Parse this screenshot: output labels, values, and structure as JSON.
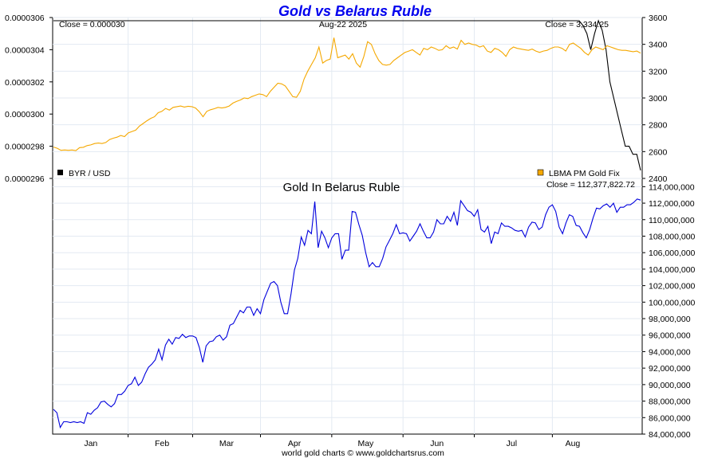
{
  "header": {
    "title": "Gold vs Belarus Ruble",
    "footer": "world gold charts © www.goldchartsrus.com"
  },
  "colors": {
    "title": "#0000ee",
    "gold_line": "#f5a800",
    "byr_line": "#000000",
    "ruble_gold_line": "#0000dd",
    "grid": "#e3eaf2"
  },
  "top_panel": {
    "left_close": "Close = 0.000030",
    "date": "Aug-22  2025",
    "right_close": "Close = 3,334.25",
    "legend_left": "BYR / USD",
    "legend_right": "LBMA PM Gold Fix",
    "left_ticks": [
      "0.0000306",
      "0.0000304",
      "0.0000302",
      "0.0000300",
      "0.0000298",
      "0.0000296"
    ],
    "right_ticks": [
      "3600",
      "3400",
      "3200",
      "3000",
      "2800",
      "2600",
      "2400"
    ]
  },
  "bottom_panel": {
    "title": "Gold In Belarus Ruble",
    "right_close": "Close = 112,377,822.72",
    "right_ticks": [
      "114,000,000",
      "112,000,000",
      "110,000,000",
      "108,000,000",
      "106,000,000",
      "104,000,000",
      "102,000,000",
      "100,000,000",
      "98,000,000",
      "96,000,000",
      "94,000,000",
      "92,000,000",
      "90,000,000",
      "88,000,000",
      "86,000,000",
      "84,000,000"
    ]
  },
  "months": [
    "Jan",
    "Feb",
    "Mar",
    "Apr",
    "May",
    "Jun",
    "Jul",
    "Aug"
  ],
  "chart_data": [
    {
      "type": "line",
      "title": "Gold vs Belarus Ruble",
      "series": [
        {
          "name": "LBMA PM Gold Fix",
          "axis": "right",
          "ylim": [
            2400,
            3600
          ],
          "values": [
            2634,
            2625,
            2610,
            2612,
            2610,
            2612,
            2608,
            2630,
            2632,
            2645,
            2650,
            2660,
            2664,
            2660,
            2668,
            2690,
            2700,
            2708,
            2720,
            2712,
            2740,
            2750,
            2760,
            2790,
            2810,
            2830,
            2848,
            2860,
            2890,
            2900,
            2922,
            2910,
            2930,
            2935,
            2940,
            2932,
            2938,
            2935,
            2925,
            2898,
            2860,
            2900,
            2912,
            2920,
            2930,
            2925,
            2930,
            2940,
            2962,
            2975,
            2985,
            3000,
            2995,
            3010,
            3020,
            3030,
            3025,
            3010,
            3050,
            3080,
            3110,
            3105,
            3090,
            3050,
            3010,
            3005,
            3050,
            3140,
            3200,
            3250,
            3300,
            3380,
            3260,
            3280,
            3290,
            3450,
            3300,
            3310,
            3320,
            3290,
            3330,
            3260,
            3230,
            3310,
            3420,
            3400,
            3330,
            3280,
            3250,
            3245,
            3250,
            3280,
            3300,
            3320,
            3340,
            3350,
            3360,
            3340,
            3320,
            3370,
            3360,
            3380,
            3370,
            3355,
            3360,
            3390,
            3370,
            3380,
            3365,
            3430,
            3400,
            3410,
            3400,
            3395,
            3380,
            3390,
            3350,
            3340,
            3370,
            3360,
            3340,
            3310,
            3360,
            3380,
            3370,
            3365,
            3360,
            3355,
            3365,
            3350,
            3340,
            3350,
            3355,
            3370,
            3380,
            3380,
            3370,
            3350,
            3400,
            3410,
            3390,
            3370,
            3340,
            3320,
            3360,
            3380,
            3370,
            3360,
            3390,
            3380,
            3370,
            3360,
            3355,
            3355,
            3350,
            3345,
            3350,
            3334.25
          ]
        },
        {
          "name": "BYR / USD",
          "axis": "left",
          "ylim": [
            2.96e-05,
            3.06e-05
          ],
          "values": [
            3.058e-05,
            3.058e-05,
            3.058e-05,
            3.058e-05,
            3.058e-05,
            3.058e-05,
            3.058e-05,
            3.058e-05,
            3.058e-05,
            3.058e-05,
            3.058e-05,
            3.058e-05,
            3.058e-05,
            3.058e-05,
            3.058e-05,
            3.058e-05,
            3.058e-05,
            3.058e-05,
            3.058e-05,
            3.058e-05,
            3.058e-05,
            3.058e-05,
            3.058e-05,
            3.058e-05,
            3.058e-05,
            3.058e-05,
            3.058e-05,
            3.058e-05,
            3.058e-05,
            3.058e-05,
            3.058e-05,
            3.058e-05,
            3.058e-05,
            3.058e-05,
            3.058e-05,
            3.058e-05,
            3.058e-05,
            3.058e-05,
            3.058e-05,
            3.058e-05,
            3.058e-05,
            3.058e-05,
            3.058e-05,
            3.058e-05,
            3.058e-05,
            3.058e-05,
            3.058e-05,
            3.058e-05,
            3.058e-05,
            3.058e-05,
            3.058e-05,
            3.058e-05,
            3.058e-05,
            3.058e-05,
            3.058e-05,
            3.058e-05,
            3.058e-05,
            3.058e-05,
            3.058e-05,
            3.058e-05,
            3.058e-05,
            3.058e-05,
            3.058e-05,
            3.058e-05,
            3.058e-05,
            3.058e-05,
            3.058e-05,
            3.058e-05,
            3.058e-05,
            3.058e-05,
            3.058e-05,
            3.058e-05,
            3.058e-05,
            3.058e-05,
            3.058e-05,
            3.058e-05,
            3.058e-05,
            3.058e-05,
            3.058e-05,
            3.058e-05,
            3.058e-05,
            3.058e-05,
            3.058e-05,
            3.058e-05,
            3.058e-05,
            3.058e-05,
            3.058e-05,
            3.058e-05,
            3.058e-05,
            3.058e-05,
            3.058e-05,
            3.058e-05,
            3.058e-05,
            3.058e-05,
            3.058e-05,
            3.058e-05,
            3.058e-05,
            3.058e-05,
            3.058e-05,
            3.058e-05,
            3.058e-05,
            3.058e-05,
            3.058e-05,
            3.058e-05,
            3.058e-05,
            3.058e-05,
            3.058e-05,
            3.058e-05,
            3.058e-05,
            3.058e-05,
            3.058e-05,
            3.058e-05,
            3.058e-05,
            3.058e-05,
            3.058e-05,
            3.058e-05,
            3.058e-05,
            3.058e-05,
            3.058e-05,
            3.058e-05,
            3.058e-05,
            3.058e-05,
            3.058e-05,
            3.058e-05,
            3.058e-05,
            3.058e-05,
            3.058e-05,
            3.058e-05,
            3.058e-05,
            3.058e-05,
            3.058e-05,
            3.058e-05,
            3.058e-05,
            3.058e-05,
            3.058e-05,
            3.058e-05,
            3.058e-05,
            3.058e-05,
            3.055e-05,
            3.05e-05,
            3.04e-05,
            3.05e-05,
            3.058e-05,
            3.052e-05,
            3.04e-05,
            3.02e-05,
            3.01e-05,
            3e-05,
            2.99e-05,
            2.98e-05,
            2.98e-05,
            2.975e-05,
            2.975e-05,
            2.965e-05
          ]
        }
      ]
    },
    {
      "type": "line",
      "title": "Gold In Belarus Ruble",
      "series": [
        {
          "name": "Gold In Belarus Ruble",
          "axis": "right",
          "ylim": [
            84000000,
            115000000
          ],
          "values": [
            87000000,
            86600000,
            84800000,
            85500000,
            85500000,
            85400000,
            85500000,
            85400000,
            85500000,
            85300000,
            86600000,
            86400000,
            86900000,
            87200000,
            87900000,
            88000000,
            87600000,
            87300000,
            87700000,
            88800000,
            88800000,
            89200000,
            89900000,
            90100000,
            90900000,
            89900000,
            90300000,
            91300000,
            92100000,
            92500000,
            93000000,
            94300000,
            93000000,
            94800000,
            95500000,
            94900000,
            95700000,
            95600000,
            96100000,
            95700000,
            95900000,
            95900000,
            95700000,
            94500000,
            92700000,
            94700000,
            95200000,
            95300000,
            95800000,
            96000000,
            95400000,
            95800000,
            97200000,
            97400000,
            98200000,
            99000000,
            98700000,
            99400000,
            99400000,
            98400000,
            99200000,
            98600000,
            100300000,
            101300000,
            102300000,
            102500000,
            102000000,
            100000000,
            98600000,
            98600000,
            101000000,
            103900000,
            105300000,
            107900000,
            106900000,
            108700000,
            108300000,
            112200000,
            106600000,
            108600000,
            107800000,
            106600000,
            107800000,
            108300000,
            108300000,
            105200000,
            106300000,
            106300000,
            111000000,
            110900000,
            109400000,
            108100000,
            106000000,
            104300000,
            104800000,
            104300000,
            104300000,
            105300000,
            106700000,
            107500000,
            108300000,
            109400000,
            108300000,
            108400000,
            108300000,
            107400000,
            108000000,
            108600000,
            109500000,
            108600000,
            107800000,
            107800000,
            108500000,
            110000000,
            109500000,
            109500000,
            110400000,
            109800000,
            110900000,
            109300000,
            112300000,
            111700000,
            111100000,
            110900000,
            110400000,
            111200000,
            108800000,
            108500000,
            109200000,
            107100000,
            108500000,
            108300000,
            109600000,
            109200000,
            109200000,
            109000000,
            108700000,
            108600000,
            108700000,
            107900000,
            109100000,
            109700000,
            109600000,
            108800000,
            109100000,
            110600000,
            111500000,
            111800000,
            111000000,
            109100000,
            108300000,
            109600000,
            110600000,
            110400000,
            109300000,
            109200000,
            108400000,
            107800000,
            108800000,
            110200000,
            111400000,
            111300000,
            111700000,
            111900000,
            111500000,
            112000000,
            110900000,
            111500000,
            111500000,
            111800000,
            111800000,
            112100000,
            112500000,
            112377822.72
          ]
        }
      ]
    }
  ]
}
